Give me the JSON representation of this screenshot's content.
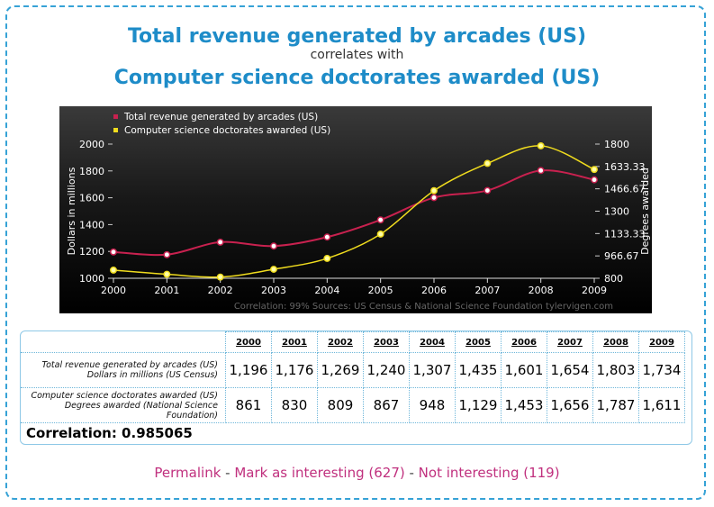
{
  "header": {
    "title1": "Total revenue generated by arcades (US)",
    "subtitle": "correlates with",
    "title2": "Computer science doctorates awarded (US)"
  },
  "chart_data": {
    "type": "line",
    "x": [
      2000,
      2001,
      2002,
      2003,
      2004,
      2005,
      2006,
      2007,
      2008,
      2009
    ],
    "series": [
      {
        "name": "Total revenue generated by arcades (US)",
        "axis": "left",
        "color": "#c8214f",
        "values": [
          1196,
          1176,
          1269,
          1240,
          1307,
          1435,
          1601,
          1654,
          1803,
          1734
        ]
      },
      {
        "name": "Computer science doctorates awarded (US)",
        "axis": "right",
        "color": "#f0dc1e",
        "values": [
          861,
          830,
          809,
          867,
          948,
          1129,
          1453,
          1656,
          1787,
          1611
        ]
      }
    ],
    "y_left": {
      "label": "Dollars in millions",
      "min": 1000,
      "max": 2000,
      "ticks": [
        "1000",
        "1200",
        "1400",
        "1600",
        "1800",
        "2000"
      ]
    },
    "y_right": {
      "label": "Degrees awarded",
      "min": 800,
      "max": 1800,
      "ticks": [
        "800",
        "966.67",
        "1133.33",
        "1300",
        "1466.67",
        "1633.33",
        "1800"
      ]
    },
    "x_ticks": [
      "2000",
      "2001",
      "2002",
      "2003",
      "2004",
      "2005",
      "2006",
      "2007",
      "2008",
      "2009"
    ],
    "footer": "Correlation: 99%     Sources: US Census & National Science Foundation   tylervigen.com",
    "legend_position": "top-left"
  },
  "table": {
    "years": [
      "2000",
      "2001",
      "2002",
      "2003",
      "2004",
      "2005",
      "2006",
      "2007",
      "2008",
      "2009"
    ],
    "rows": [
      {
        "label1": "Total revenue generated by arcades (US)",
        "label2": "Dollars in millions (US Census)",
        "values": [
          "1,196",
          "1,176",
          "1,269",
          "1,240",
          "1,307",
          "1,435",
          "1,601",
          "1,654",
          "1,803",
          "1,734"
        ]
      },
      {
        "label1": "Computer science doctorates awarded (US)",
        "label2": "Degrees awarded (National Science Foundation)",
        "values": [
          "861",
          "830",
          "809",
          "867",
          "948",
          "1,129",
          "1,453",
          "1,656",
          "1,787",
          "1,611"
        ]
      }
    ],
    "correlation": "Correlation: 0.985065"
  },
  "links": {
    "permalink": "Permalink",
    "sep": " - ",
    "interesting": "Mark as interesting (627)",
    "not_interesting": "Not interesting (119)"
  }
}
